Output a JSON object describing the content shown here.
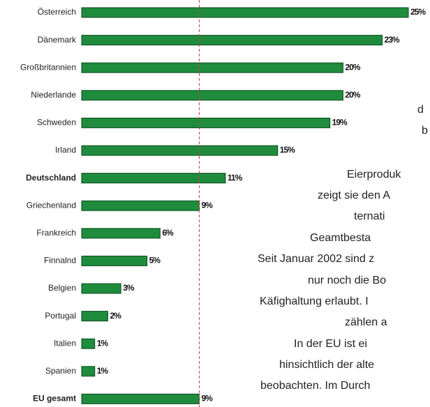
{
  "chart_data": {
    "type": "barh",
    "categories": [
      "Österreich",
      "Dänemark",
      "Großbritannien",
      "Niederlande",
      "Schweden",
      "Irland",
      "Deutschland",
      "Griechenland",
      "Frankreich",
      "Finnalnd",
      "Belgien",
      "Portugal",
      "Italien",
      "Spanien",
      "EU gesamt"
    ],
    "values": [
      25,
      23,
      20,
      20,
      19,
      15,
      11,
      9,
      6,
      5,
      3,
      2,
      1,
      1,
      9
    ],
    "value_labels": [
      "25%",
      "23%",
      "20%",
      "20%",
      "19%",
      "15%",
      "11%",
      "9%",
      "6%",
      "5%",
      "3%",
      "2%",
      "1%",
      "1%",
      "9%"
    ],
    "bold_categories": [
      6,
      14
    ],
    "color": "#1e8c3c",
    "xlim": [
      0,
      25
    ],
    "reference_line": 9,
    "reference_color": "#d9363e"
  },
  "text_lines": [
    "d",
    "b",
    "Eierproduk",
    "zeigt sie den A",
    "ternati",
    "Geamtbesta",
    "Seit Januar 2002 sind z",
    "nur noch die Bo",
    "Käfighaltung erlaubt. I",
    "zählen a",
    "In der EU ist ei",
    "hinsichtlich der alte",
    "beobachten. Im Durch"
  ]
}
